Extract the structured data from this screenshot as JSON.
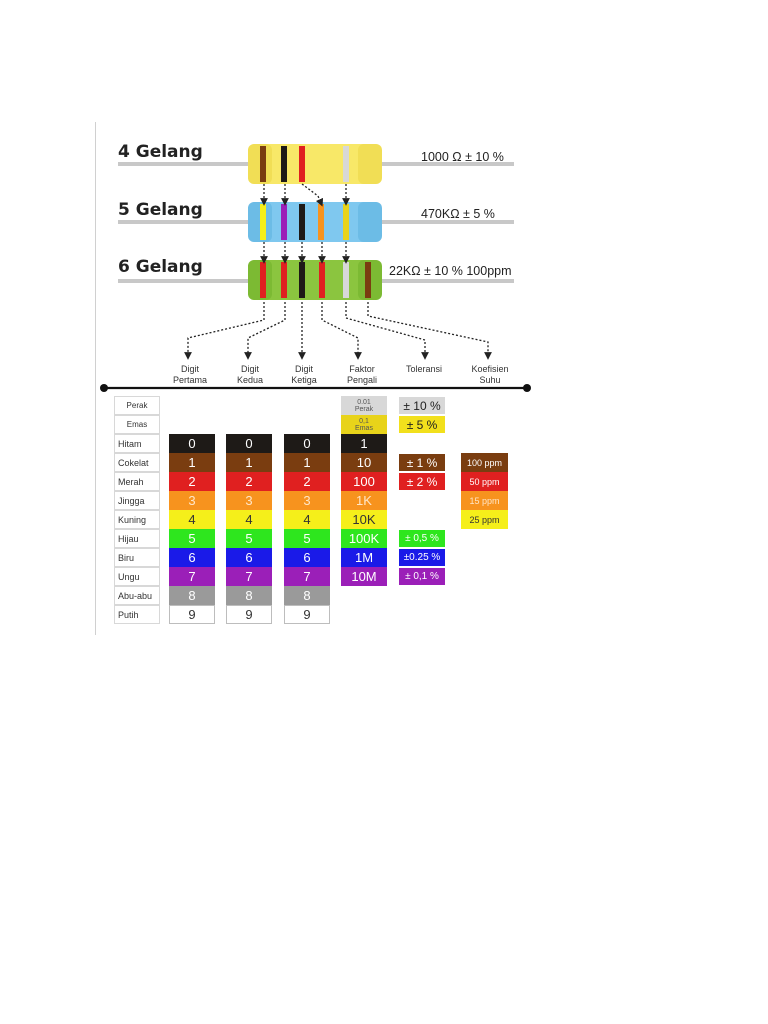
{
  "headings": [
    "4 Gelang",
    "5 Gelang",
    "6 Gelang"
  ],
  "resistor_labels": [
    "1000 Ω ± 10 %",
    "470KΩ ± 5 %",
    "22KΩ ± 10 % 100ppm"
  ],
  "column_labels": [
    {
      "line1": "Digit",
      "line2": "Pertama"
    },
    {
      "line1": "Digit",
      "line2": "Kedua"
    },
    {
      "line1": "Digit",
      "line2": "Ketiga"
    },
    {
      "line1": "Faktor",
      "line2": "Pengali"
    },
    {
      "line1": "Toleransi",
      "line2": ""
    },
    {
      "line1": "Koefisien",
      "line2": "Suhu"
    }
  ],
  "special_names": [
    "Perak",
    "Emas"
  ],
  "special_multipliers": [
    {
      "value": "0.01",
      "name": "Perak",
      "color": "#d8d8d8",
      "text": "#555555"
    },
    {
      "value": "0,1",
      "name": "Emas",
      "color": "#e8d31a",
      "text": "#555555"
    }
  ],
  "special_tolerances": [
    {
      "label": "± 10 %",
      "color": "#d8d8d8",
      "text": "#222222"
    },
    {
      "label": "± 5 %",
      "color": "#f2e01c",
      "text": "#222222"
    }
  ],
  "rows": [
    {
      "name": "Hitam",
      "digit": "0",
      "color": "#1e1a17",
      "text": "#ffffff",
      "multiplier": "1",
      "tolerance": "",
      "tempco": ""
    },
    {
      "name": "Cokelat",
      "digit": "1",
      "color": "#7a3d10",
      "text": "#ffffff",
      "multiplier": "10",
      "tolerance": "± 1 %",
      "tempco": "100 ppm"
    },
    {
      "name": "Merah",
      "digit": "2",
      "color": "#e02020",
      "text": "#ffffff",
      "multiplier": "100",
      "tolerance": "± 2 %",
      "tempco": "50 ppm"
    },
    {
      "name": "Jingga",
      "digit": "3",
      "color": "#f7931e",
      "text": "#ffe6c8",
      "multiplier": "1K",
      "tolerance": "",
      "tempco": "15 ppm"
    },
    {
      "name": "Kuning",
      "digit": "4",
      "color": "#f5ef1a",
      "text": "#333333",
      "multiplier": "10K",
      "tolerance": "",
      "tempco": "25 ppm"
    },
    {
      "name": "Hijau",
      "digit": "5",
      "color": "#2ee61e",
      "text": "#ffffff",
      "multiplier": "100K",
      "tolerance": "± 0,5 %",
      "tempco": ""
    },
    {
      "name": "Biru",
      "digit": "6",
      "color": "#1a1ae8",
      "text": "#ffffff",
      "multiplier": "1M",
      "tolerance": "±0.25 %",
      "tempco": ""
    },
    {
      "name": "Ungu",
      "digit": "7",
      "color": "#9b1fb8",
      "text": "#ffffff",
      "multiplier": "10M",
      "tolerance": "± 0,1 %",
      "tempco": ""
    },
    {
      "name": "Abu-abu",
      "digit": "8",
      "color": "#9a9a9a",
      "text": "#ffffff",
      "multiplier": "",
      "tolerance": "",
      "tempco": ""
    },
    {
      "name": "Putih",
      "digit": "9",
      "color": "#ffffff",
      "text": "#333333",
      "multiplier": "",
      "tolerance": "",
      "tempco": ""
    }
  ],
  "resistors": [
    {
      "body": "#f8e868",
      "cap": "#f1de55",
      "bands": [
        "#7a3d10",
        "#1e1a17",
        "#e02020",
        "#d8d8d8"
      ]
    },
    {
      "body": "#7fc8ef",
      "cap": "#6cbce6",
      "bands": [
        "#f5ef1a",
        "#9b1fb8",
        "#1e1a17",
        "#f7931e",
        "#e8d31a"
      ]
    },
    {
      "body": "#8bc53f",
      "cap": "#7cba33",
      "bands": [
        "#e02020",
        "#e02020",
        "#1e1a17",
        "#e02020",
        "#d8d8d8",
        "#7a3d10"
      ]
    }
  ]
}
